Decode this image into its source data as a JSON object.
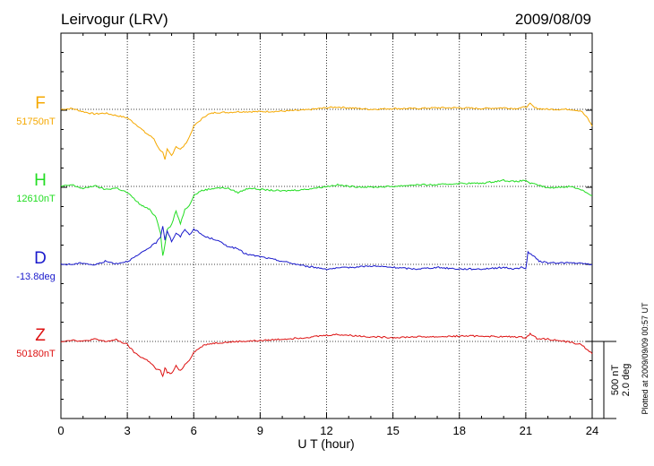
{
  "header": {
    "title": "Leirvogur (LRV)",
    "date": "2009/08/09"
  },
  "side_note": "Plotted at 2009/09/09 00:57 UT",
  "scale_bar": {
    "line1": "500 nT",
    "line2": "2.0 deg"
  },
  "chart_data": {
    "type": "line",
    "title": "Leirvogur (LRV)",
    "xlabel": "U T (hour)",
    "ylabel": "",
    "xlim": [
      0,
      24
    ],
    "x_ticks": [
      "0",
      "3",
      "6",
      "9",
      "12",
      "15",
      "18",
      "21",
      "24"
    ],
    "grid": true,
    "series": [
      {
        "name": "F",
        "baseline_label": "51750nT",
        "color": "#f5a800",
        "x": [
          0,
          0.5,
          1,
          1.5,
          2,
          2.5,
          3,
          3.5,
          3.8,
          4,
          4.2,
          4.4,
          4.6,
          4.7,
          4.8,
          5,
          5.2,
          5.4,
          5.6,
          5.8,
          6,
          6.3,
          6.6,
          7,
          7.5,
          8,
          9,
          10,
          11,
          12,
          12.5,
          13,
          14,
          15,
          16,
          17,
          18,
          19,
          20,
          20.5,
          21,
          21.2,
          21.4,
          21.6,
          22,
          23,
          23.5,
          23.8,
          24
        ],
        "values": [
          0,
          5,
          -15,
          -30,
          -25,
          -40,
          -55,
          -110,
          -150,
          -170,
          -190,
          -250,
          -280,
          -330,
          -260,
          -300,
          -240,
          -260,
          -230,
          -180,
          -110,
          -70,
          -35,
          -20,
          -20,
          -15,
          -15,
          -12,
          -5,
          10,
          15,
          10,
          0,
          5,
          5,
          10,
          10,
          5,
          10,
          5,
          15,
          35,
          10,
          5,
          0,
          0,
          -10,
          -60,
          -110
        ]
      },
      {
        "name": "H",
        "baseline_label": "12610nT",
        "color": "#22dd22",
        "x": [
          0,
          0.5,
          1,
          1.5,
          2,
          2.5,
          3,
          3.3,
          3.6,
          4,
          4.3,
          4.5,
          4.6,
          4.7,
          4.8,
          5,
          5.2,
          5.4,
          5.6,
          5.8,
          6,
          6.3,
          6.6,
          7,
          7.5,
          8,
          8.5,
          9,
          10,
          11,
          12,
          12.5,
          13,
          14,
          15,
          16,
          17,
          18,
          19,
          20,
          20.5,
          21,
          21.2,
          21.5,
          22,
          23,
          23.5,
          24
        ],
        "values": [
          0,
          10,
          -15,
          5,
          -20,
          -10,
          -40,
          -80,
          -120,
          -150,
          -200,
          -300,
          -450,
          -380,
          -280,
          -250,
          -160,
          -240,
          -150,
          -120,
          -60,
          -30,
          -20,
          -10,
          -10,
          -40,
          -10,
          -20,
          -30,
          -20,
          0,
          10,
          0,
          -5,
          0,
          10,
          10,
          20,
          20,
          40,
          30,
          40,
          20,
          10,
          -10,
          0,
          -20,
          -60
        ]
      },
      {
        "name": "D",
        "baseline_label": "-13.8deg",
        "color": "#1a1acc",
        "x": [
          0,
          0.5,
          1,
          1.5,
          2,
          2.5,
          3,
          3.5,
          4,
          4.3,
          4.5,
          4.6,
          4.7,
          4.8,
          5,
          5.2,
          5.4,
          5.6,
          5.8,
          6,
          6.5,
          7,
          7.5,
          8,
          8.3,
          8.6,
          9,
          10,
          11,
          12,
          13,
          14,
          15,
          16,
          17,
          18,
          19,
          20,
          20.5,
          20.8,
          21,
          21.1,
          21.3,
          21.6,
          22,
          23,
          24
        ],
        "values": [
          0,
          0,
          10,
          -5,
          20,
          5,
          20,
          60,
          110,
          140,
          180,
          250,
          160,
          220,
          150,
          200,
          180,
          230,
          190,
          230,
          180,
          160,
          120,
          100,
          70,
          60,
          50,
          20,
          -10,
          -30,
          -20,
          -10,
          -20,
          -30,
          -20,
          -30,
          -30,
          -20,
          -30,
          -20,
          -30,
          80,
          60,
          20,
          10,
          10,
          0
        ]
      },
      {
        "name": "Z",
        "baseline_label": "50180nT",
        "color": "#dd1111",
        "x": [
          0,
          0.5,
          1,
          1.5,
          2,
          2.5,
          3,
          3.3,
          3.6,
          4,
          4.3,
          4.5,
          4.6,
          4.7,
          4.8,
          5,
          5.2,
          5.4,
          5.6,
          5.8,
          6,
          6.5,
          7,
          7.5,
          8,
          9,
          10,
          11,
          12,
          12.5,
          13,
          14,
          15,
          16,
          17,
          18,
          19,
          20,
          20.5,
          21,
          21.2,
          21.5,
          22,
          23,
          23.5,
          24
        ],
        "values": [
          0,
          10,
          0,
          15,
          0,
          10,
          -20,
          -70,
          -100,
          -130,
          -180,
          -190,
          -230,
          -170,
          -200,
          -210,
          -160,
          -190,
          -150,
          -120,
          -70,
          -20,
          -10,
          -5,
          0,
          5,
          15,
          25,
          40,
          45,
          40,
          30,
          25,
          30,
          30,
          35,
          35,
          30,
          30,
          25,
          50,
          20,
          15,
          -5,
          -20,
          -80
        ]
      }
    ]
  }
}
